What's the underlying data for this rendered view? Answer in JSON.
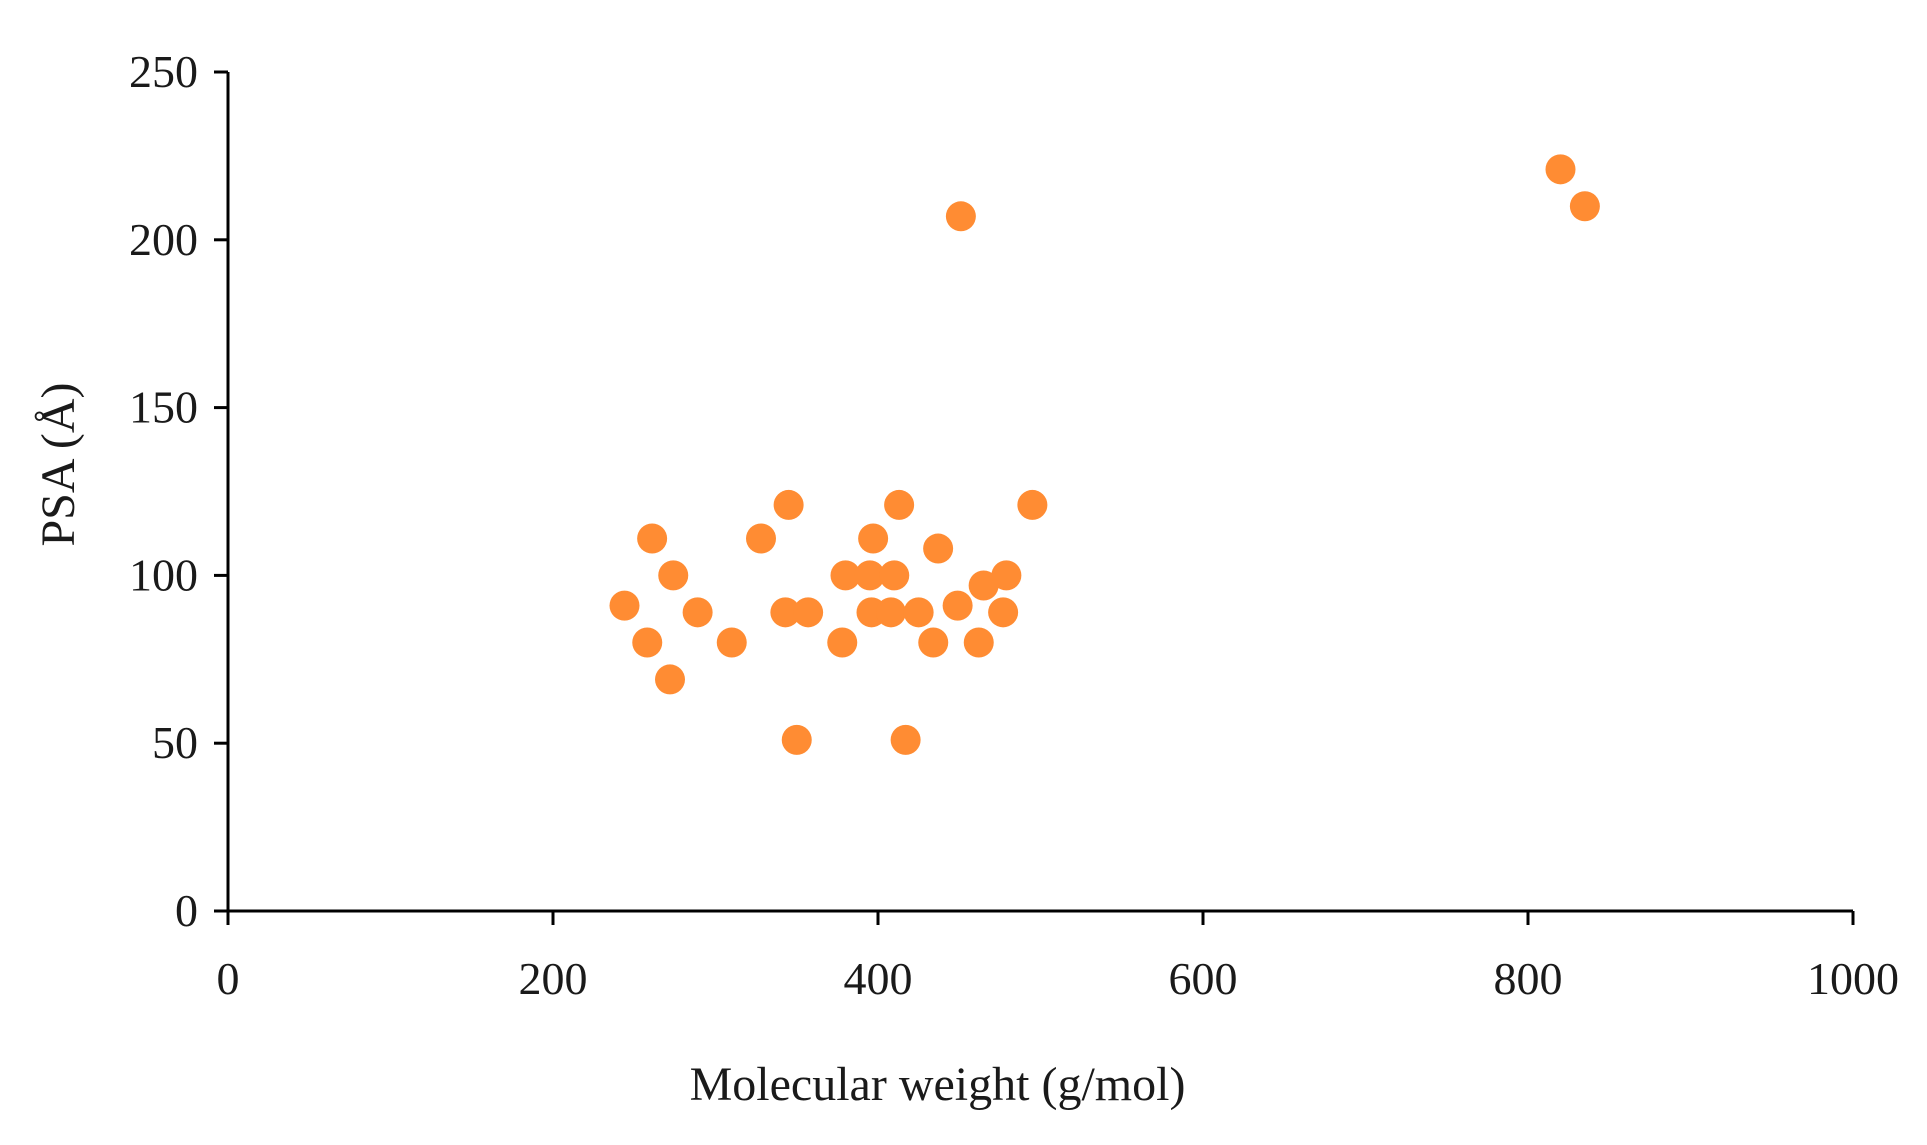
{
  "chart_data": {
    "type": "scatter",
    "xlabel": "Molecular weight (g/mol)",
    "ylabel": "PSA (Å)",
    "xlim": [
      0,
      1000
    ],
    "ylim": [
      0,
      250
    ],
    "x_ticks": [
      0,
      200,
      400,
      600,
      800,
      1000
    ],
    "y_ticks": [
      0,
      50,
      100,
      150,
      200,
      250
    ],
    "x_tick_labels": [
      "0",
      "200",
      "400",
      "600",
      "800",
      "1000"
    ],
    "y_tick_labels": [
      "0",
      "50",
      "100",
      "150",
      "200",
      "250"
    ],
    "grid": false,
    "legend": "none",
    "marker_color": "#ff8c33",
    "series": [
      {
        "points": [
          {
            "x": 244,
            "y": 91
          },
          {
            "x": 258,
            "y": 80
          },
          {
            "x": 261,
            "y": 111
          },
          {
            "x": 272,
            "y": 69
          },
          {
            "x": 274,
            "y": 100
          },
          {
            "x": 289,
            "y": 89
          },
          {
            "x": 310,
            "y": 80
          },
          {
            "x": 328,
            "y": 111
          },
          {
            "x": 343,
            "y": 89
          },
          {
            "x": 345,
            "y": 121
          },
          {
            "x": 350,
            "y": 51
          },
          {
            "x": 357,
            "y": 89
          },
          {
            "x": 378,
            "y": 80
          },
          {
            "x": 380,
            "y": 100
          },
          {
            "x": 395,
            "y": 100
          },
          {
            "x": 396,
            "y": 89
          },
          {
            "x": 397,
            "y": 111
          },
          {
            "x": 408,
            "y": 89
          },
          {
            "x": 410,
            "y": 100
          },
          {
            "x": 413,
            "y": 121
          },
          {
            "x": 417,
            "y": 51
          },
          {
            "x": 425,
            "y": 89
          },
          {
            "x": 434,
            "y": 80
          },
          {
            "x": 437,
            "y": 108
          },
          {
            "x": 449,
            "y": 91
          },
          {
            "x": 451,
            "y": 207
          },
          {
            "x": 462,
            "y": 80
          },
          {
            "x": 465,
            "y": 97
          },
          {
            "x": 477,
            "y": 89
          },
          {
            "x": 479,
            "y": 100
          },
          {
            "x": 495,
            "y": 121
          },
          {
            "x": 820,
            "y": 221
          },
          {
            "x": 835,
            "y": 210
          }
        ]
      }
    ]
  }
}
